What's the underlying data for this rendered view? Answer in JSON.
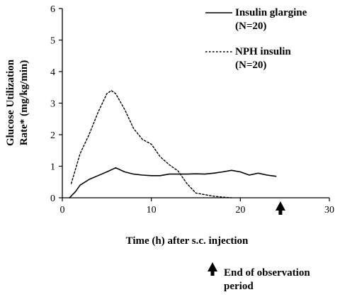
{
  "chart_data": {
    "type": "line",
    "xlabel": "Time (h) after s.c. injection",
    "ylabel_lines": [
      "Glucose Utilization",
      "Rate* (mg/kg/min)"
    ],
    "xlim": [
      0,
      30
    ],
    "ylim": [
      0,
      6
    ],
    "x_ticks": [
      0,
      10,
      20,
      30
    ],
    "y_ticks": [
      0,
      1,
      2,
      3,
      4,
      5,
      6
    ],
    "grid": false,
    "legend_position": "top-right",
    "series": [
      {
        "name_lines": [
          "Insulin glargine",
          "(N=20)"
        ],
        "style": "solid",
        "x": [
          0.8,
          1.5,
          2,
          3,
          4,
          5,
          6,
          7,
          8,
          9,
          10,
          11,
          12,
          13,
          14,
          15,
          16,
          17,
          18,
          19,
          20,
          21,
          22,
          23,
          24
        ],
        "y": [
          0.0,
          0.2,
          0.4,
          0.58,
          0.7,
          0.82,
          0.95,
          0.82,
          0.75,
          0.72,
          0.7,
          0.7,
          0.75,
          0.75,
          0.75,
          0.76,
          0.75,
          0.78,
          0.82,
          0.87,
          0.82,
          0.72,
          0.78,
          0.72,
          0.68
        ]
      },
      {
        "name_lines": [
          "NPH insulin",
          "(N=20)"
        ],
        "style": "dashed",
        "x": [
          1,
          2,
          3,
          4,
          5,
          5.5,
          6,
          7,
          8,
          9,
          10,
          11,
          12,
          13,
          14,
          15,
          16,
          17,
          18,
          19
        ],
        "y": [
          0.45,
          1.4,
          2.0,
          2.7,
          3.3,
          3.4,
          3.3,
          2.8,
          2.2,
          1.85,
          1.7,
          1.3,
          1.05,
          0.85,
          0.45,
          0.15,
          0.1,
          0.05,
          0.02,
          0.0
        ]
      }
    ],
    "annotation": {
      "x": 24.5,
      "text_lines": [
        "End of observation",
        "period"
      ]
    }
  }
}
